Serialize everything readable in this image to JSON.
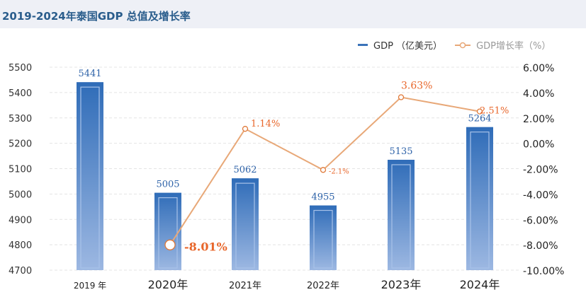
{
  "title": "2019-2024年泰国GDP 总值及增长率",
  "chart_data": {
    "type": "bar+line",
    "title": "2019-2024年泰国GDP 总值及增长率",
    "categories": [
      "2019 年",
      "2020年",
      "2021年",
      "2022年",
      "2023年",
      "2024年"
    ],
    "series": [
      {
        "name": "GDP （亿美元）",
        "type": "bar",
        "axis": "left",
        "values": [
          5441,
          5005,
          5062,
          4955,
          5135,
          5264
        ],
        "labels": [
          "5441",
          "5005",
          "5062",
          "4955",
          "5135",
          "5264"
        ],
        "color": "#3b73b9"
      },
      {
        "name": "GDP增长率（%）",
        "type": "line",
        "axis": "right",
        "values": [
          null,
          -8.01,
          1.14,
          -2.1,
          3.63,
          2.51
        ],
        "labels": [
          "",
          "-8.01%",
          "1.14%",
          "-2.1%",
          "3.63%",
          "2.51%"
        ],
        "color": "#e8a878"
      }
    ],
    "left_axis": {
      "ylim": [
        4700,
        5500
      ],
      "ticks": [
        "5500",
        "5400",
        "5300",
        "5200",
        "5100",
        "5000",
        "4900",
        "4800",
        "4700"
      ]
    },
    "right_axis": {
      "ylim": [
        -10,
        6
      ],
      "ticks": [
        "6.00%",
        "4.00%",
        "2.00%",
        "0.00%",
        "-2.00%",
        "-4.00%",
        "-6.00%",
        "-8.00%",
        "-10.00%"
      ]
    },
    "grid": true,
    "legend": "top-right"
  }
}
